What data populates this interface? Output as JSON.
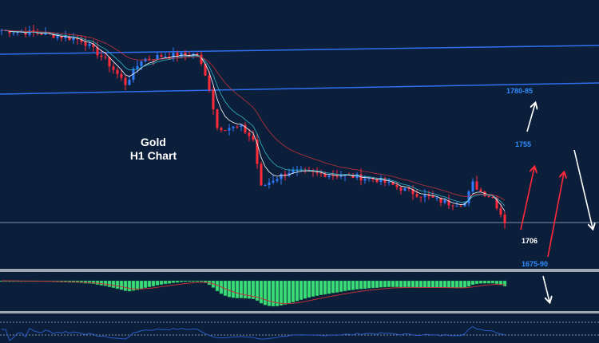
{
  "chart_data": {
    "type": "candlestick",
    "title": "Gold",
    "subtitle": "H1 Chart",
    "ylim": [
      1682,
      1817.6
    ],
    "keypoints": {
      "bar_index": [
        0,
        10,
        20,
        26,
        31,
        35,
        40,
        49,
        52,
        54,
        60,
        63,
        65,
        68,
        72,
        80,
        86,
        94,
        102,
        112,
        116,
        118,
        120,
        123,
        126
      ],
      "close": [
        1802.4,
        1800.8,
        1797.6,
        1787.6,
        1775.6,
        1787.6,
        1789.6,
        1790.4,
        1773.6,
        1753.6,
        1753.6,
        1747.6,
        1723.6,
        1727.6,
        1731.6,
        1730.4,
        1729.6,
        1727.6,
        1721.6,
        1715.6,
        1715.6,
        1725.6,
        1721.6,
        1718.4,
        1706.4
      ]
    },
    "horizontal_line": 1706,
    "annotations": [
      "1780-85",
      "1755",
      "1706",
      "1675-90"
    ],
    "indicators": [
      "MACD histogram with signal line",
      "RSI"
    ],
    "colors": {
      "background": "#0b1f3a",
      "bull": "#2f7bff",
      "bear": "#ff2a3a",
      "channel": "#2f6ff0",
      "macd": "#3ddc7a",
      "signal": "#c0303a",
      "rsi": "#2a5cc8",
      "annot_blue": "#2f8cff"
    }
  }
}
